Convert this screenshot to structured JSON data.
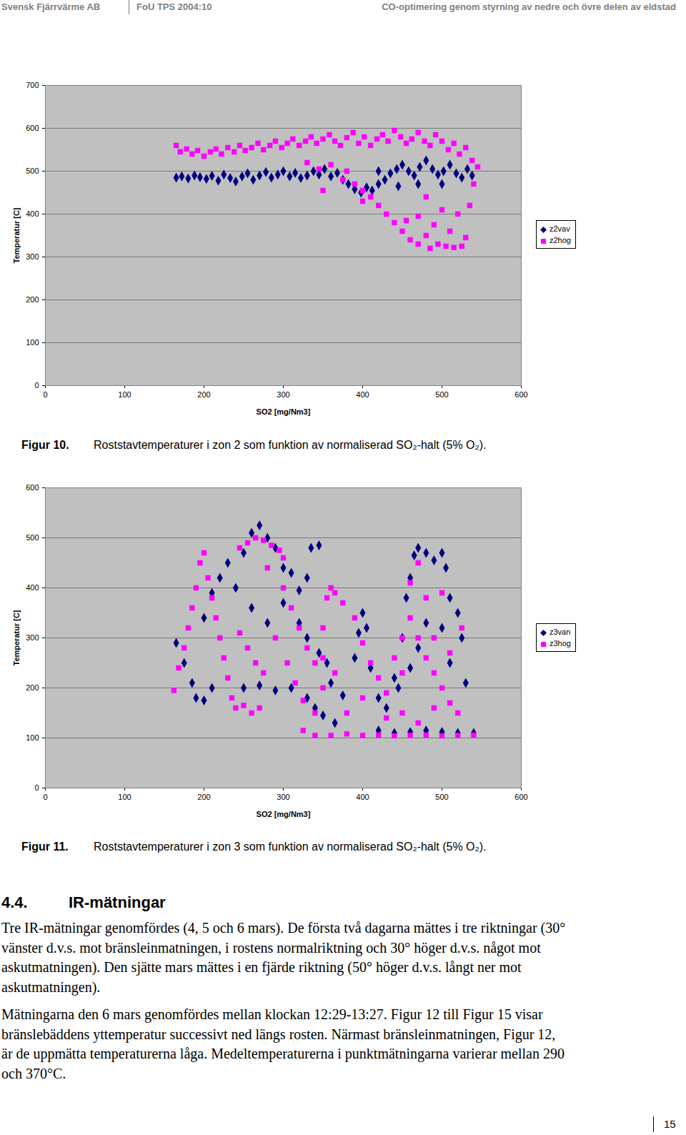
{
  "header": {
    "org": "Svensk Fjärrvärme AB",
    "report": "FoU TPS 2004:10",
    "title": "CO-optimering genom styrning av nedre och övre delen av eldstad"
  },
  "chart_data": [
    {
      "type": "scatter",
      "x_label": "SO2 [mg/Nm3]",
      "y_label": "Temperatur [C]",
      "xlim": [
        0,
        600
      ],
      "xticks": [
        0,
        100,
        200,
        300,
        400,
        500,
        600
      ],
      "ylim": [
        0,
        700
      ],
      "yticks": [
        0,
        100,
        200,
        300,
        400,
        500,
        600,
        700
      ],
      "grid": true,
      "legend": "right",
      "series": [
        {
          "name": "z2vav",
          "color": "#000080",
          "marker": "diamond",
          "x": [
            165,
            172,
            180,
            188,
            195,
            203,
            210,
            218,
            225,
            233,
            240,
            248,
            255,
            262,
            270,
            278,
            285,
            293,
            300,
            308,
            315,
            322,
            330,
            338,
            345,
            352,
            360,
            368,
            375,
            382,
            390,
            398,
            405,
            412,
            420,
            428,
            435,
            443,
            450,
            458,
            465,
            472,
            480,
            488,
            495,
            502,
            510,
            518,
            525,
            532,
            538,
            470,
            500,
            420,
            445
          ],
          "values": [
            485,
            488,
            483,
            490,
            486,
            482,
            489,
            478,
            492,
            484,
            476,
            488,
            495,
            480,
            490,
            498,
            485,
            492,
            500,
            488,
            496,
            484,
            490,
            500,
            492,
            505,
            488,
            496,
            480,
            470,
            458,
            450,
            462,
            455,
            470,
            480,
            495,
            505,
            515,
            500,
            490,
            510,
            525,
            505,
            492,
            500,
            515,
            495,
            485,
            505,
            490,
            470,
            470,
            500,
            465
          ]
        },
        {
          "name": "z2hog",
          "color": "#ff00ff",
          "marker": "square",
          "x": [
            165,
            170,
            178,
            185,
            192,
            200,
            208,
            215,
            222,
            230,
            238,
            245,
            252,
            260,
            268,
            275,
            283,
            290,
            298,
            305,
            312,
            320,
            328,
            335,
            342,
            350,
            358,
            365,
            372,
            380,
            388,
            395,
            402,
            410,
            418,
            425,
            432,
            440,
            448,
            455,
            462,
            470,
            478,
            485,
            492,
            500,
            508,
            515,
            522,
            530,
            538,
            545,
            330,
            345,
            360,
            375,
            390,
            400,
            410,
            420,
            400,
            430,
            440,
            450,
            455,
            460,
            470,
            480,
            485,
            495,
            505,
            515,
            525,
            530,
            510,
            490,
            470,
            500,
            520,
            535,
            350,
            380,
            480,
            540
          ],
          "values": [
            560,
            545,
            552,
            540,
            548,
            535,
            545,
            552,
            540,
            555,
            545,
            560,
            548,
            555,
            565,
            550,
            560,
            570,
            555,
            565,
            575,
            560,
            570,
            580,
            565,
            575,
            585,
            570,
            560,
            578,
            590,
            565,
            580,
            560,
            575,
            585,
            570,
            595,
            580,
            565,
            575,
            590,
            570,
            560,
            585,
            570,
            550,
            565,
            540,
            555,
            525,
            510,
            520,
            505,
            515,
            480,
            470,
            455,
            440,
            420,
            430,
            400,
            380,
            360,
            385,
            340,
            330,
            350,
            320,
            330,
            325,
            322,
            325,
            345,
            360,
            375,
            395,
            410,
            400,
            420,
            455,
            500,
            440,
            470
          ]
        }
      ]
    },
    {
      "type": "scatter",
      "x_label": "SO2 [mg/Nm3]",
      "y_label": "Temperatur [C]",
      "xlim": [
        0,
        600
      ],
      "xticks": [
        0,
        100,
        200,
        300,
        400,
        500,
        600
      ],
      "ylim": [
        0,
        600
      ],
      "yticks": [
        0,
        100,
        200,
        300,
        400,
        500,
        600
      ],
      "grid": true,
      "legend": "right",
      "series": [
        {
          "name": "z3van",
          "color": "#000080",
          "marker": "diamond",
          "x": [
            165,
            175,
            185,
            190,
            200,
            210,
            200,
            210,
            220,
            230,
            240,
            250,
            260,
            270,
            280,
            290,
            300,
            310,
            320,
            330,
            335,
            345,
            260,
            280,
            300,
            320,
            330,
            345,
            355,
            360,
            250,
            270,
            290,
            310,
            330,
            340,
            350,
            365,
            375,
            390,
            395,
            400,
            405,
            410,
            420,
            430,
            440,
            450,
            455,
            460,
            465,
            470,
            480,
            490,
            500,
            505,
            510,
            520,
            525,
            500,
            480,
            470,
            460,
            445,
            420,
            440,
            460,
            480,
            500,
            520,
            540,
            530,
            510
          ],
          "values": [
            290,
            250,
            210,
            180,
            175,
            200,
            340,
            390,
            420,
            450,
            400,
            470,
            510,
            525,
            500,
            480,
            440,
            430,
            395,
            420,
            480,
            485,
            360,
            330,
            370,
            330,
            300,
            270,
            250,
            210,
            200,
            205,
            195,
            200,
            180,
            160,
            145,
            130,
            185,
            260,
            310,
            350,
            320,
            240,
            180,
            160,
            220,
            300,
            380,
            420,
            465,
            480,
            470,
            455,
            470,
            440,
            380,
            350,
            300,
            320,
            330,
            280,
            240,
            200,
            115,
            110,
            112,
            115,
            112,
            110,
            110,
            210,
            250
          ]
        },
        {
          "name": "z3hog",
          "color": "#ff00ff",
          "marker": "square",
          "x": [
            162,
            168,
            175,
            180,
            185,
            190,
            195,
            200,
            205,
            210,
            215,
            220,
            225,
            230,
            235,
            240,
            250,
            260,
            270,
            245,
            255,
            265,
            275,
            285,
            295,
            300,
            280,
            300,
            310,
            320,
            330,
            340,
            350,
            355,
            360,
            365,
            245,
            255,
            265,
            275,
            290,
            305,
            315,
            325,
            340,
            350,
            325,
            340,
            360,
            380,
            400,
            420,
            440,
            460,
            480,
            500,
            520,
            540,
            350,
            365,
            375,
            390,
            400,
            410,
            420,
            430,
            440,
            450,
            460,
            470,
            480,
            490,
            500,
            510,
            520,
            430,
            450,
            470,
            490,
            510,
            525,
            480,
            470,
            460,
            500,
            490,
            450,
            380,
            400
          ],
          "values": [
            195,
            240,
            280,
            320,
            360,
            400,
            450,
            470,
            420,
            380,
            340,
            300,
            260,
            220,
            180,
            160,
            165,
            150,
            160,
            480,
            490,
            500,
            495,
            485,
            475,
            460,
            440,
            400,
            360,
            320,
            280,
            250,
            320,
            380,
            400,
            390,
            310,
            280,
            250,
            230,
            300,
            250,
            210,
            175,
            150,
            200,
            115,
            105,
            105,
            108,
            105,
            106,
            104,
            105,
            106,
            104,
            105,
            106,
            260,
            230,
            370,
            340,
            290,
            250,
            220,
            190,
            260,
            300,
            340,
            300,
            260,
            230,
            200,
            170,
            150,
            140,
            150,
            130,
            160,
            270,
            320,
            380,
            450,
            410,
            390,
            300,
            230,
            150,
            180
          ]
        }
      ]
    }
  ],
  "captions": [
    {
      "label": "Figur 10.",
      "text": "Roststavtemperaturer i zon 2 som funktion av normaliserad SO₂-halt (5% O₂)."
    },
    {
      "label": "Figur 11.",
      "text": "Roststavtemperaturer i zon 3 som funktion av normaliserad SO₂-halt (5% O₂)."
    }
  ],
  "section": {
    "number": "4.4.",
    "heading": "IR-mätningar",
    "paragraphs": [
      "Tre IR-mätningar genomfördes (4, 5 och 6 mars). De första två dagarna mättes i tre riktningar (30° vänster d.v.s. mot bränsleinmatningen, i rostens normalriktning och 30° höger d.v.s. något mot askutmatningen). Den sjätte mars mättes i en fjärde riktning (50° höger d.v.s. långt ner mot askutmatningen).",
      "Mätningarna den 6 mars genomfördes mellan klockan 12:29-13:27. Figur 12 till Figur 15 visar bränslebäddens yttemperatur successivt ned längs rosten. Närmast bränsleinmatningen, Figur 12, är de uppmätta temperaturerna låga. Medeltemperaturerna i punktmätningarna varierar mellan 290 och 370°C."
    ]
  },
  "page_number": "15"
}
